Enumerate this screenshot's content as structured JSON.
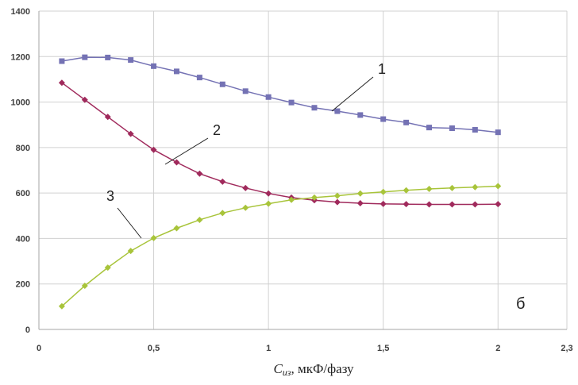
{
  "chart_data": {
    "type": "line",
    "xlabel_main": "C",
    "xlabel_sub": "из",
    "xlabel_rest": ", мкФ/фазу",
    "panel_label": "б",
    "xlim": [
      0,
      2.3
    ],
    "ylim": [
      0,
      1400
    ],
    "grid": true,
    "x_ticks": [
      0,
      0.5,
      1,
      1.5,
      2,
      2.3
    ],
    "x_tick_labels": [
      "0",
      "0,5",
      "1",
      "1,5",
      "2",
      "2,3"
    ],
    "y_ticks": [
      0,
      200,
      400,
      600,
      800,
      1000,
      1200,
      1400
    ],
    "y_tick_labels": [
      "0",
      "200",
      "400",
      "600",
      "800",
      "1000",
      "1200",
      "1400"
    ],
    "x": [
      0.1,
      0.2,
      0.3,
      0.4,
      0.5,
      0.6,
      0.7,
      0.8,
      0.9,
      1.0,
      1.1,
      1.2,
      1.3,
      1.4,
      1.5,
      1.6,
      1.7,
      1.8,
      1.9,
      2.0
    ],
    "series": [
      {
        "callout": "1",
        "color": "#7472b4",
        "marker": "square",
        "values": [
          1180,
          1197,
          1196,
          1185,
          1158,
          1135,
          1108,
          1078,
          1048,
          1022,
          998,
          975,
          960,
          943,
          925,
          910,
          888,
          885,
          878,
          867
        ]
      },
      {
        "callout": "2",
        "color": "#a02a5c",
        "marker": "diamond",
        "values": [
          1085,
          1010,
          935,
          860,
          790,
          735,
          685,
          650,
          622,
          598,
          580,
          568,
          560,
          555,
          552,
          551,
          550,
          550,
          550,
          551
        ]
      },
      {
        "callout": "3",
        "color": "#a8c43a",
        "marker": "diamond",
        "values": [
          102,
          192,
          272,
          345,
          402,
          445,
          482,
          512,
          535,
          553,
          570,
          580,
          588,
          598,
          605,
          612,
          618,
          622,
          626,
          630
        ]
      }
    ]
  }
}
